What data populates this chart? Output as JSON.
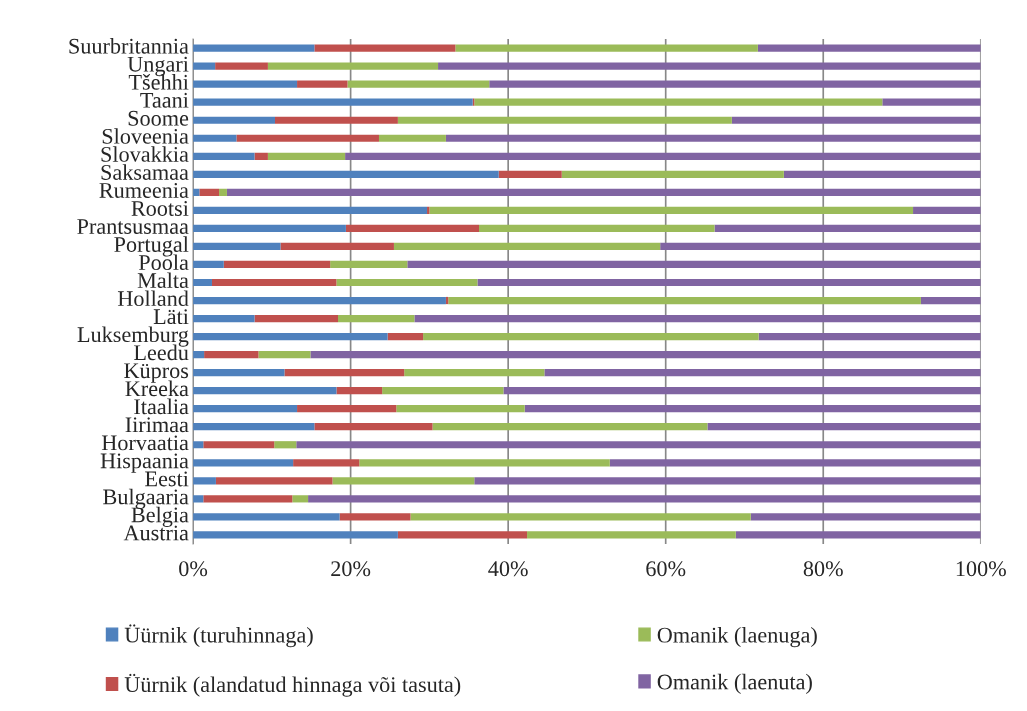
{
  "chart_data": {
    "type": "bar",
    "orientation": "horizontal",
    "stacked": true,
    "categories": [
      "Suurbritannia",
      "Ungari",
      "Tšehhi",
      "Taani",
      "Soome",
      "Sloveenia",
      "Slovakkia",
      "Saksamaa",
      "Rumeenia",
      "Rootsi",
      "Prantsusmaa",
      "Portugal",
      "Poola",
      "Malta",
      "Holland",
      "Läti",
      "Luksemburg",
      "Leedu",
      "Küpros",
      "Kreeka",
      "Itaalia",
      "Iirimaa",
      "Horvaatia",
      "Hispaania",
      "Eesti",
      "Bulgaaria",
      "Belgia",
      "Austria"
    ],
    "series": [
      {
        "name": "Üürnik (turuhinnaga)",
        "color": "#4f81bd",
        "values": [
          15.4,
          2.8,
          13.2,
          35.5,
          10.4,
          5.5,
          7.8,
          38.8,
          0.8,
          29.7,
          19.4,
          11.1,
          3.9,
          2.4,
          32.1,
          7.8,
          24.7,
          1.4,
          11.6,
          18.2,
          13.2,
          15.4,
          1.3,
          12.7,
          2.9,
          1.3,
          18.6,
          26.0
        ]
      },
      {
        "name": "Üürnik (alandatud hinnaga või tasuta)",
        "color": "#c0504d",
        "values": [
          17.9,
          6.7,
          6.4,
          0.2,
          15.6,
          18.1,
          1.7,
          8.0,
          2.5,
          0.3,
          16.9,
          14.4,
          13.5,
          15.8,
          0.3,
          10.6,
          4.5,
          6.9,
          15.2,
          5.8,
          12.6,
          15.0,
          9.0,
          8.4,
          14.8,
          11.3,
          9.0,
          16.4
        ]
      },
      {
        "name": "Omanik (laenuga)",
        "color": "#9bbb59",
        "values": [
          38.4,
          21.6,
          18.0,
          51.8,
          42.4,
          8.5,
          9.8,
          28.2,
          1.0,
          61.4,
          29.9,
          33.8,
          9.8,
          17.9,
          60.0,
          9.7,
          42.6,
          6.6,
          17.8,
          15.4,
          16.3,
          34.9,
          2.8,
          31.8,
          18.0,
          2.0,
          43.2,
          26.5
        ]
      },
      {
        "name": "Omanik (laenuta)",
        "color": "#8064a2",
        "values": [
          28.3,
          68.9,
          62.4,
          12.5,
          31.6,
          67.9,
          80.7,
          25.0,
          95.7,
          8.6,
          33.8,
          40.7,
          72.8,
          63.9,
          7.6,
          71.9,
          28.2,
          85.1,
          55.4,
          60.6,
          57.9,
          34.7,
          86.9,
          47.1,
          64.3,
          85.4,
          29.2,
          31.1
        ]
      }
    ],
    "xlim": [
      0,
      100
    ],
    "xticks": [
      {
        "value": 0,
        "label": "0%"
      },
      {
        "value": 20,
        "label": "20%"
      },
      {
        "value": 40,
        "label": "40%"
      },
      {
        "value": 60,
        "label": "60%"
      },
      {
        "value": 80,
        "label": "80%"
      },
      {
        "value": 100,
        "label": "100%"
      }
    ],
    "grid": "x",
    "legend": "bottom"
  }
}
